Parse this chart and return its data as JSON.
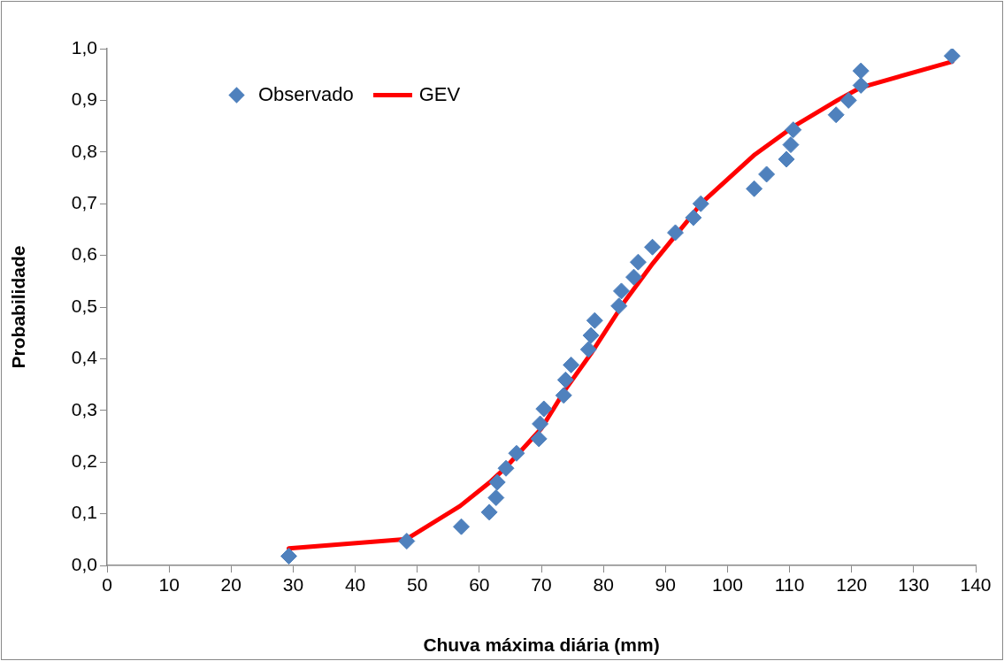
{
  "chart_data": {
    "type": "scatter",
    "xlabel": "Chuva máxima diária (mm)",
    "ylabel": "Probabilidade",
    "xlim": [
      0,
      140
    ],
    "xticks": [
      0,
      10,
      20,
      30,
      40,
      50,
      60,
      70,
      80,
      90,
      100,
      110,
      120,
      130,
      140
    ],
    "ylim": [
      0,
      1
    ],
    "yticks": [
      {
        "value": 0,
        "label": "0,0"
      },
      {
        "value": 0.1,
        "label": "0,1"
      },
      {
        "value": 0.2,
        "label": "0,2"
      },
      {
        "value": 0.3,
        "label": "0,3"
      },
      {
        "value": 0.4,
        "label": "0,4"
      },
      {
        "value": 0.5,
        "label": "0,5"
      },
      {
        "value": 0.6,
        "label": "0,6"
      },
      {
        "value": 0.7,
        "label": "0,7"
      },
      {
        "value": 0.8,
        "label": "0,8"
      },
      {
        "value": 0.9,
        "label": "0,9"
      },
      {
        "value": 1,
        "label": "1,0"
      }
    ],
    "grid": false,
    "legend": "top left",
    "series": [
      {
        "name": "Observado",
        "type": "scatter",
        "marker": "diamond",
        "color": "#4f81bd",
        "x": [
          29.3,
          48.3,
          57.1,
          61.6,
          62.7,
          62.9,
          64.3,
          66.0,
          69.6,
          69.8,
          70.4,
          73.6,
          73.9,
          74.8,
          77.6,
          78.0,
          78.6,
          82.5,
          82.9,
          84.9,
          85.6,
          87.9,
          91.6,
          94.5,
          95.7,
          104.3,
          106.3,
          109.5,
          110.2,
          110.6,
          117.5,
          119.5,
          121.5,
          121.5,
          136.2
        ],
        "values": [
          0.018,
          0.047,
          0.075,
          0.103,
          0.131,
          0.161,
          0.188,
          0.217,
          0.245,
          0.274,
          0.303,
          0.329,
          0.359,
          0.388,
          0.418,
          0.445,
          0.474,
          0.502,
          0.531,
          0.558,
          0.587,
          0.616,
          0.644,
          0.673,
          0.7,
          0.729,
          0.757,
          0.786,
          0.814,
          0.843,
          0.872,
          0.9,
          0.929,
          0.957,
          0.986
        ]
      },
      {
        "name": "GEV",
        "type": "line",
        "marker": "none",
        "line_style": "solid",
        "color": "#ff0000",
        "x": [
          29.3,
          48.3,
          56.9,
          61.6,
          64.3,
          70.0,
          73.9,
          78.0,
          83.5,
          88.0,
          93.5,
          95.7,
          104.4,
          110.6,
          117.7,
          121.5,
          136.2
        ],
        "values": [
          0.033,
          0.051,
          0.115,
          0.16,
          0.19,
          0.265,
          0.341,
          0.41,
          0.512,
          0.585,
          0.666,
          0.7,
          0.795,
          0.849,
          0.9,
          0.925,
          0.975
        ]
      }
    ]
  }
}
